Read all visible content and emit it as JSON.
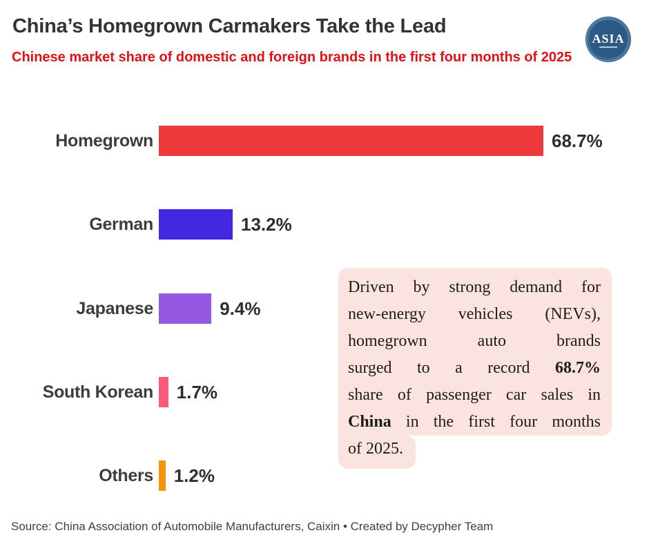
{
  "header": {
    "title": "China’s Homegrown Carmakers Take the Lead",
    "subtitle": "Chinese market share of domestic and foreign brands in the first four months of 2025",
    "subtitle_color": "#e01115",
    "logo_text": "ASIA",
    "logo_color": "#2a5a85"
  },
  "chart_data": {
    "type": "bar",
    "orientation": "horizontal",
    "title": "Chinese market share of domestic and foreign brands in the first four months of 2025",
    "categories": [
      "Homegrown",
      "German",
      "Japanese",
      "South Korean",
      "Others"
    ],
    "values": [
      68.7,
      13.2,
      9.4,
      1.7,
      1.2
    ],
    "value_labels": [
      "68.7%",
      "13.2%",
      "9.4%",
      "1.7%",
      "1.2%"
    ],
    "colors": [
      "#ee3a3c",
      "#4229e1",
      "#9458e1",
      "#fa5b7d",
      "#f7940b"
    ],
    "xlim": [
      0,
      68.7
    ],
    "grid": false,
    "legend": false
  },
  "annotation": {
    "bg_color": "#fbe3e0",
    "full_text": "Driven by strong demand for new-energy vehicles (NEVs), homegrown auto brands surged to a record 68.7% share of passenger car sales in China in the first four months of 2025.",
    "main_lines": [
      [
        {
          "t": "Driven by strong demand for",
          "b": false
        }
      ],
      [
        {
          "t": "new-energy vehicles (NEVs),",
          "b": false
        }
      ],
      [
        {
          "t": "homegrown auto brands",
          "b": false
        }
      ],
      [
        {
          "t": "surged to a record ",
          "b": false
        },
        {
          "t": "68.7%",
          "b": true
        }
      ],
      [
        {
          "t": "share of passenger car sales in",
          "b": false
        }
      ],
      [
        {
          "t": "China",
          "b": true
        },
        {
          "t": " in the first four months",
          "b": false
        }
      ]
    ],
    "tail_lines": [
      [
        {
          "t": "of 2025.",
          "b": false
        }
      ]
    ]
  },
  "footer": {
    "text": "Source: China Association of Automobile Manufacturers, Caixin • Created by Decypher Team"
  }
}
